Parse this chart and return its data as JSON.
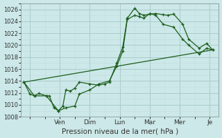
{
  "title": "",
  "xlabel": "Pression niveau de la mer( hPa )",
  "ylabel": "",
  "background_color": "#cce8e8",
  "grid_color_major": "#aacccc",
  "grid_color_minor": "#c0dcdc",
  "line_color": "#1a5c1a",
  "ylim": [
    1008,
    1027
  ],
  "yticks": [
    1008,
    1010,
    1012,
    1014,
    1016,
    1018,
    1020,
    1022,
    1024,
    1026
  ],
  "xlim": [
    -0.3,
    6.3
  ],
  "day_ticks_x": [
    0,
    1,
    2,
    3,
    4,
    5,
    6
  ],
  "day_labels": [
    "",
    "Ven",
    "Dim",
    "Lun",
    "Mar",
    "Mer",
    "Je"
  ],
  "series1_x": [
    -0.2,
    0.0,
    0.15,
    0.3,
    0.55,
    0.65,
    0.8,
    0.95,
    1.1,
    1.2,
    1.35,
    1.5,
    1.65,
    2.0,
    2.3,
    2.5,
    2.65,
    2.9,
    3.1,
    3.25,
    3.5,
    3.65,
    3.8,
    4.0,
    4.2,
    4.45,
    4.6,
    4.8,
    5.1,
    5.3,
    5.65,
    5.9,
    6.1
  ],
  "series1_y": [
    1013.8,
    1011.8,
    1011.5,
    1011.9,
    1011.5,
    1011.5,
    1009.5,
    1009.0,
    1009.8,
    1012.5,
    1012.3,
    1012.8,
    1013.8,
    1013.5,
    1013.3,
    1013.5,
    1013.8,
    1017.0,
    1019.7,
    1024.5,
    1026.2,
    1025.3,
    1025.0,
    1025.2,
    1025.3,
    1025.1,
    1025.0,
    1025.2,
    1023.5,
    1021.0,
    1019.5,
    1020.3,
    1019.2
  ],
  "series2_x": [
    -0.2,
    0.15,
    0.55,
    0.95,
    1.2,
    1.5,
    1.65,
    2.0,
    2.3,
    2.65,
    2.9,
    3.1,
    3.25,
    3.5,
    3.65,
    3.8,
    4.0,
    4.2,
    4.45,
    4.8,
    5.1,
    5.3,
    5.65,
    5.9,
    6.1
  ],
  "series2_y": [
    1013.8,
    1011.5,
    1011.5,
    1009.0,
    1009.5,
    1009.8,
    1011.8,
    1012.5,
    1013.5,
    1014.0,
    1016.5,
    1019.0,
    1024.3,
    1025.0,
    1024.8,
    1024.5,
    1025.3,
    1025.0,
    1023.5,
    1023.0,
    1021.0,
    1020.0,
    1018.5,
    1019.5,
    1019.2
  ],
  "series3_x": [
    -0.2,
    6.1
  ],
  "series3_y": [
    1013.8,
    1019.2
  ]
}
